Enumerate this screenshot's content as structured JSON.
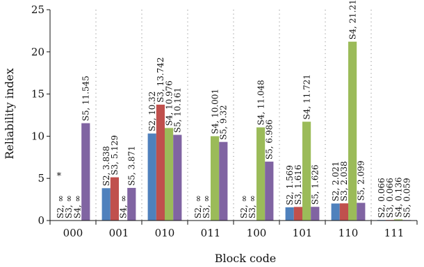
{
  "chart_data": {
    "type": "bar",
    "title": "",
    "xlabel": "Block code",
    "ylabel": "Reliability index",
    "ylim": [
      0,
      25
    ],
    "yticks": [
      0,
      5,
      10,
      15,
      20,
      25
    ],
    "grid": "vertical dotted separators between categories",
    "legend": "none",
    "categories": [
      "000",
      "001",
      "010",
      "011",
      "100",
      "101",
      "110",
      "111"
    ],
    "series": [
      {
        "name": "S2",
        "color": "#4f81bd",
        "values": [
          null,
          3.838,
          10.32,
          null,
          null,
          1.569,
          2.021,
          0.066
        ],
        "labels": [
          "S2, ∞",
          "S2, 3.838",
          "S2, 10.32",
          "S2, ∞",
          "S2, ∞",
          "S2, 1.569",
          "S2, 2.021",
          "S2, 0.066"
        ]
      },
      {
        "name": "S3",
        "color": "#c0504d",
        "values": [
          null,
          5.129,
          13.742,
          null,
          null,
          1.616,
          2.038,
          0.066
        ],
        "labels": [
          "S3, ∞",
          "S3, 5.129",
          "S3, 13.742",
          "S3, ∞",
          "S3, ∞",
          "S3, 1.616",
          "S3, 2.038",
          "S3, 0.066"
        ]
      },
      {
        "name": "S4",
        "color": "#9bbb59",
        "values": [
          null,
          null,
          10.976,
          10.001,
          11.048,
          11.721,
          21.21,
          0.136
        ],
        "labels": [
          "S4, ∞",
          "S4, ∞",
          "S4, 10.976",
          "S4, 10.001",
          "S4, 11.048",
          "S4, 11.721",
          "S4, 21.21",
          "S4, 0.136"
        ]
      },
      {
        "name": "S5",
        "color": "#8064a2",
        "values": [
          11.545,
          3.871,
          10.161,
          9.32,
          6.986,
          1.626,
          2.099,
          0.059
        ],
        "labels": [
          "S5, 11.545",
          "S5, 3.871",
          "S5, 10.161",
          "S5, 9.32",
          "S5, 6.986",
          "S5, 1.626",
          "S5, 2.099",
          "S5, 0.059"
        ]
      }
    ],
    "annotations": [
      {
        "text": "*",
        "category": "000"
      }
    ]
  }
}
